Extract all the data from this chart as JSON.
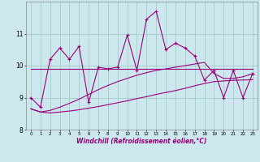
{
  "xlabel": "Windchill (Refroidissement éolien,°C)",
  "bg_color": "#cce8ee",
  "grid_color": "#aacfcc",
  "line_color": "#990077",
  "x_hours": [
    0,
    1,
    2,
    3,
    4,
    5,
    6,
    7,
    8,
    9,
    10,
    11,
    12,
    13,
    14,
    15,
    16,
    17,
    18,
    19,
    20,
    21,
    22,
    23
  ],
  "main_line": [
    9.0,
    8.7,
    10.2,
    10.55,
    10.2,
    10.6,
    8.85,
    9.95,
    9.9,
    9.95,
    10.95,
    9.85,
    11.45,
    11.7,
    10.5,
    10.7,
    10.55,
    10.3,
    9.55,
    9.85,
    9.0,
    9.85,
    9.0,
    9.75
  ],
  "flat_line": [
    9.9,
    9.9,
    9.9,
    9.9,
    9.9,
    9.9,
    9.9,
    9.9,
    9.9,
    9.9,
    9.9,
    9.9,
    9.9,
    9.9,
    9.9,
    9.9,
    9.9,
    9.9,
    9.9,
    9.9,
    9.9,
    9.9,
    9.9,
    9.9
  ],
  "lower_line": [
    8.65,
    8.55,
    8.52,
    8.55,
    8.58,
    8.62,
    8.67,
    8.72,
    8.78,
    8.84,
    8.9,
    8.97,
    9.03,
    9.1,
    9.16,
    9.22,
    9.29,
    9.37,
    9.44,
    9.5,
    9.52,
    9.54,
    9.55,
    9.56
  ],
  "upper_line": [
    8.65,
    8.55,
    8.6,
    8.7,
    8.82,
    8.95,
    9.1,
    9.25,
    9.38,
    9.5,
    9.6,
    9.7,
    9.78,
    9.85,
    9.9,
    9.95,
    10.0,
    10.05,
    10.1,
    9.75,
    9.6,
    9.6,
    9.65,
    9.75
  ],
  "ylim": [
    8.0,
    12.0
  ],
  "yticks": [
    8,
    9,
    10,
    11
  ],
  "figsize": [
    3.2,
    2.0
  ],
  "dpi": 100
}
